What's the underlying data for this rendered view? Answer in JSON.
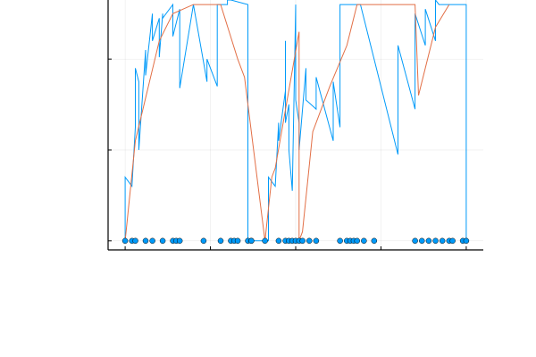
{
  "chart_data": {
    "type": "line",
    "title": "",
    "xlabel": "",
    "ylabel": "",
    "grid": true,
    "legend": "none",
    "xlim": [
      -0.05,
      1.05
    ],
    "ylim": [
      -0.1,
      2.65
    ],
    "series": [
      {
        "color": "#009af9",
        "x": [
          0.0,
          0.0,
          0.02,
          0.03,
          0.03,
          0.04,
          0.04,
          0.06,
          0.06,
          0.08,
          0.08,
          0.1,
          0.1,
          0.11,
          0.11,
          0.14,
          0.14,
          0.16,
          0.16,
          0.2,
          0.2,
          0.2,
          0.24,
          0.24,
          0.27,
          0.27,
          0.28,
          0.28,
          0.3,
          0.3,
          0.31,
          0.36,
          0.36,
          0.37,
          0.37,
          0.42,
          0.42,
          0.44,
          0.45,
          0.45,
          0.47,
          0.47,
          0.47,
          0.48,
          0.48,
          0.49,
          0.5,
          0.5,
          0.51,
          0.51,
          0.53,
          0.53,
          0.56,
          0.56,
          0.61,
          0.61,
          0.63,
          0.63,
          0.66,
          0.66,
          0.69,
          0.69,
          0.8,
          0.8,
          0.85,
          0.85,
          0.88,
          0.88,
          0.91,
          0.91,
          0.92,
          0.92,
          0.98,
          0.98,
          1.0,
          1.0,
          1.0,
          1.0
        ],
        "y": [
          0.0,
          0.7,
          0.6,
          1.25,
          1.9,
          1.75,
          1.0,
          2.1,
          1.82,
          2.5,
          2.2,
          2.45,
          2.02,
          2.5,
          2.45,
          2.6,
          2.25,
          2.55,
          1.68,
          2.6,
          2.6,
          2.6,
          1.75,
          2.0,
          1.7,
          2.6,
          2.6,
          2.6,
          2.6,
          2.65,
          2.65,
          2.6,
          0.0,
          0.0,
          0.0,
          0.0,
          0.7,
          0.6,
          1.3,
          1.1,
          1.65,
          2.2,
          1.3,
          1.5,
          1.0,
          0.55,
          2.6,
          1.55,
          1.3,
          1.0,
          1.9,
          1.55,
          1.45,
          1.8,
          1.1,
          1.75,
          1.25,
          2.6,
          2.6,
          2.6,
          2.6,
          2.6,
          0.95,
          2.15,
          1.45,
          2.5,
          2.15,
          2.55,
          2.2,
          2.65,
          2.6,
          2.6,
          2.6,
          2.6,
          2.6,
          2.6,
          2.6,
          0.0
        ]
      },
      {
        "color": "#e26f46",
        "x": [
          0.0,
          0.03,
          0.1,
          0.14,
          0.2,
          0.27,
          0.28,
          0.33,
          0.35,
          0.41,
          0.43,
          0.44,
          0.51,
          0.51,
          0.52,
          0.55,
          0.6,
          0.65,
          0.68,
          0.75,
          0.8,
          0.85,
          0.86,
          0.91,
          0.95
        ],
        "y": [
          0.0,
          1.1,
          2.2,
          2.5,
          2.6,
          2.6,
          2.6,
          2.0,
          1.8,
          0.0,
          0.7,
          0.8,
          2.3,
          0.0,
          0.1,
          1.2,
          1.7,
          2.15,
          2.6,
          2.6,
          2.6,
          2.6,
          1.6,
          2.35,
          2.6
        ]
      }
    ],
    "points": {
      "color": "#009af9",
      "x": [
        0.0,
        0.02,
        0.03,
        0.06,
        0.08,
        0.11,
        0.14,
        0.15,
        0.16,
        0.23,
        0.28,
        0.31,
        0.32,
        0.33,
        0.36,
        0.37,
        0.37,
        0.41,
        0.45,
        0.47,
        0.48,
        0.49,
        0.5,
        0.51,
        0.52,
        0.54,
        0.56,
        0.63,
        0.65,
        0.66,
        0.67,
        0.68,
        0.7,
        0.73,
        0.85,
        0.87,
        0.89,
        0.91,
        0.93,
        0.95,
        0.96,
        0.99,
        1.0
      ],
      "y": 0.0
    }
  }
}
